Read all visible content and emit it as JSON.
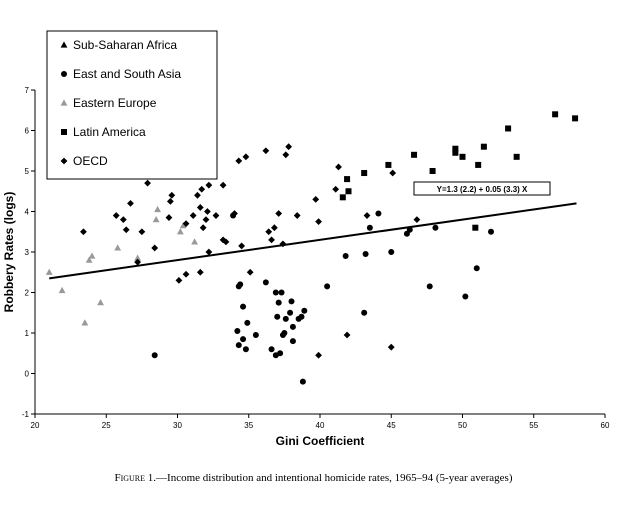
{
  "chart_data": {
    "type": "scatter",
    "xlabel": "Gini Coefficient",
    "ylabel": "Robbery Rates (logs)",
    "xlim": [
      20,
      60
    ],
    "ylim": [
      -1,
      7
    ],
    "x_ticks": [
      "20",
      "25",
      "30",
      "35",
      "40",
      "45",
      "50",
      "55",
      "60"
    ],
    "y_ticks": [
      "-1",
      "0",
      "1",
      "2",
      "3",
      "4",
      "5",
      "6",
      "7"
    ],
    "grid": false,
    "legend_position": "top-left",
    "regression": {
      "label": "Y=1.3 (2.2) + 0.05 (3.3) X",
      "intercept": 1.3,
      "slope": 0.05,
      "x_range": [
        21,
        58
      ]
    },
    "series": [
      {
        "name": "Sub-Saharan Africa",
        "marker": "triangle",
        "color": "#000000",
        "points": []
      },
      {
        "name": "East and South Asia",
        "marker": "circle",
        "color": "#000000",
        "points": [
          [
            28.4,
            0.45
          ],
          [
            34.2,
            1.05
          ],
          [
            34.4,
            2.2
          ],
          [
            34.3,
            2.15
          ],
          [
            34.6,
            1.65
          ],
          [
            34.9,
            1.25
          ],
          [
            34.3,
            0.7
          ],
          [
            34.6,
            0.85
          ],
          [
            34.8,
            0.6
          ],
          [
            35.5,
            0.95
          ],
          [
            36.6,
            0.6
          ],
          [
            36.2,
            2.25
          ],
          [
            36.9,
            2.0
          ],
          [
            37.1,
            1.75
          ],
          [
            37.3,
            2.0
          ],
          [
            37.0,
            1.4
          ],
          [
            37.4,
            0.95
          ],
          [
            37.9,
            1.5
          ],
          [
            38.1,
            1.15
          ],
          [
            38.0,
            1.78
          ],
          [
            37.6,
            1.35
          ],
          [
            38.5,
            1.35
          ],
          [
            38.9,
            1.55
          ],
          [
            38.7,
            1.4
          ],
          [
            37.2,
            0.5
          ],
          [
            38.1,
            0.8
          ],
          [
            38.8,
            -0.2
          ],
          [
            36.9,
            0.45
          ],
          [
            37.5,
            1.0
          ],
          [
            40.5,
            2.15
          ],
          [
            41.8,
            2.9
          ],
          [
            43.1,
            1.5
          ],
          [
            43.2,
            2.95
          ],
          [
            43.5,
            3.6
          ],
          [
            44.1,
            3.95
          ],
          [
            45.0,
            3.0
          ],
          [
            46.1,
            3.45
          ],
          [
            46.3,
            3.55
          ],
          [
            47.7,
            2.15
          ],
          [
            48.1,
            3.6
          ],
          [
            50.2,
            1.9
          ],
          [
            51.0,
            2.6
          ],
          [
            52.0,
            3.5
          ],
          [
            33.9,
            3.9
          ]
        ]
      },
      {
        "name": "Eastern Europe",
        "marker": "triangle",
        "color": "#999999",
        "points": [
          [
            21.0,
            2.5
          ],
          [
            21.9,
            2.05
          ],
          [
            23.5,
            1.25
          ],
          [
            23.8,
            2.8
          ],
          [
            24.0,
            2.9
          ],
          [
            24.6,
            1.75
          ],
          [
            25.8,
            3.1
          ],
          [
            27.2,
            2.85
          ],
          [
            28.5,
            3.8
          ],
          [
            28.6,
            4.05
          ],
          [
            30.2,
            3.5
          ],
          [
            30.4,
            3.65
          ],
          [
            31.2,
            3.25
          ]
        ]
      },
      {
        "name": "Latin America",
        "marker": "square",
        "color": "#000000",
        "points": [
          [
            41.6,
            4.35
          ],
          [
            41.9,
            4.8
          ],
          [
            42.0,
            4.5
          ],
          [
            43.1,
            4.95
          ],
          [
            44.8,
            5.15
          ],
          [
            46.6,
            5.4
          ],
          [
            47.9,
            5.0
          ],
          [
            49.5,
            5.45
          ],
          [
            49.5,
            5.55
          ],
          [
            50.0,
            5.35
          ],
          [
            51.1,
            5.15
          ],
          [
            51.5,
            5.6
          ],
          [
            53.2,
            6.05
          ],
          [
            53.8,
            5.35
          ],
          [
            56.5,
            6.4
          ],
          [
            57.9,
            6.3
          ],
          [
            50.9,
            3.6
          ]
        ]
      },
      {
        "name": "OECD",
        "marker": "diamond",
        "color": "#000000",
        "points": [
          [
            23.4,
            3.5
          ],
          [
            25.7,
            3.9
          ],
          [
            26.2,
            3.8
          ],
          [
            26.4,
            3.55
          ],
          [
            26.7,
            4.2
          ],
          [
            27.2,
            2.75
          ],
          [
            27.5,
            3.5
          ],
          [
            27.9,
            4.7
          ],
          [
            28.4,
            3.1
          ],
          [
            29.5,
            4.25
          ],
          [
            29.6,
            4.4
          ],
          [
            29.4,
            3.85
          ],
          [
            30.1,
            2.3
          ],
          [
            30.6,
            3.7
          ],
          [
            30.6,
            2.45
          ],
          [
            31.1,
            3.9
          ],
          [
            31.4,
            4.4
          ],
          [
            31.7,
            4.55
          ],
          [
            31.6,
            4.1
          ],
          [
            31.8,
            3.6
          ],
          [
            31.6,
            2.5
          ],
          [
            32.0,
            3.8
          ],
          [
            32.1,
            4.0
          ],
          [
            32.2,
            3.0
          ],
          [
            32.2,
            4.65
          ],
          [
            32.7,
            3.9
          ],
          [
            33.2,
            4.65
          ],
          [
            33.2,
            3.3
          ],
          [
            33.4,
            3.25
          ],
          [
            34.0,
            3.95
          ],
          [
            34.3,
            5.25
          ],
          [
            34.5,
            3.15
          ],
          [
            34.8,
            5.35
          ],
          [
            35.1,
            2.5
          ],
          [
            36.2,
            5.5
          ],
          [
            36.4,
            3.5
          ],
          [
            36.6,
            3.3
          ],
          [
            36.8,
            3.6
          ],
          [
            37.1,
            3.95
          ],
          [
            37.4,
            3.2
          ],
          [
            37.6,
            5.4
          ],
          [
            37.8,
            5.6
          ],
          [
            38.4,
            3.9
          ],
          [
            39.7,
            4.3
          ],
          [
            39.9,
            3.75
          ],
          [
            39.9,
            0.45
          ],
          [
            41.1,
            4.55
          ],
          [
            41.3,
            5.1
          ],
          [
            41.9,
            0.95
          ],
          [
            43.3,
            3.9
          ],
          [
            45.1,
            4.95
          ],
          [
            46.8,
            3.8
          ],
          [
            45.0,
            0.65
          ]
        ]
      }
    ]
  },
  "caption": {
    "figure_label": "Figure 1.",
    "text": "—Income distribution and intentional homicide rates, 1965–94 (5-year averages)"
  }
}
